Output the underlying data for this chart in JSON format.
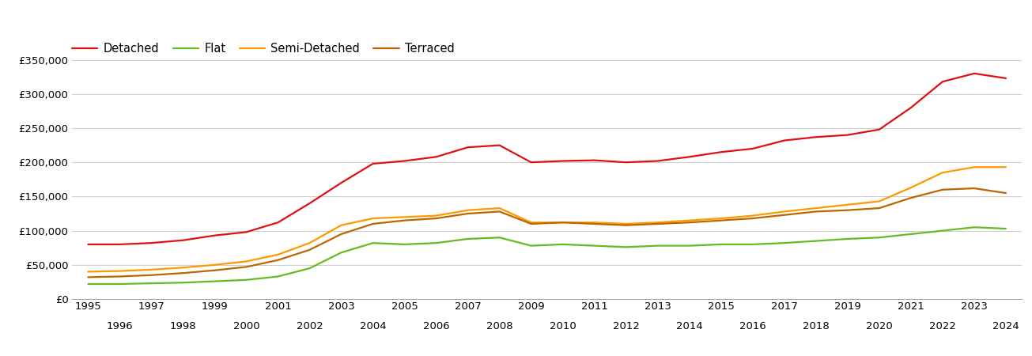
{
  "series": {
    "Detached": {
      "color": "#dd1111",
      "years": [
        1995,
        1996,
        1997,
        1998,
        1999,
        2000,
        2001,
        2002,
        2003,
        2004,
        2005,
        2006,
        2007,
        2008,
        2009,
        2010,
        2011,
        2012,
        2013,
        2014,
        2015,
        2016,
        2017,
        2018,
        2019,
        2020,
        2021,
        2022,
        2023,
        2024
      ],
      "values": [
        80000,
        80000,
        82000,
        86000,
        93000,
        98000,
        112000,
        140000,
        170000,
        198000,
        202000,
        208000,
        222000,
        225000,
        200000,
        202000,
        203000,
        200000,
        202000,
        208000,
        215000,
        220000,
        232000,
        237000,
        240000,
        248000,
        280000,
        318000,
        330000,
        323000
      ]
    },
    "Flat": {
      "color": "#66bb22",
      "years": [
        1995,
        1996,
        1997,
        1998,
        1999,
        2000,
        2001,
        2002,
        2003,
        2004,
        2005,
        2006,
        2007,
        2008,
        2009,
        2010,
        2011,
        2012,
        2013,
        2014,
        2015,
        2016,
        2017,
        2018,
        2019,
        2020,
        2021,
        2022,
        2023,
        2024
      ],
      "values": [
        22000,
        22000,
        23000,
        24000,
        26000,
        28000,
        33000,
        45000,
        68000,
        82000,
        80000,
        82000,
        88000,
        90000,
        78000,
        80000,
        78000,
        76000,
        78000,
        78000,
        80000,
        80000,
        82000,
        85000,
        88000,
        90000,
        95000,
        100000,
        105000,
        103000
      ]
    },
    "Semi-Detached": {
      "color": "#ff9900",
      "years": [
        1995,
        1996,
        1997,
        1998,
        1999,
        2000,
        2001,
        2002,
        2003,
        2004,
        2005,
        2006,
        2007,
        2008,
        2009,
        2010,
        2011,
        2012,
        2013,
        2014,
        2015,
        2016,
        2017,
        2018,
        2019,
        2020,
        2021,
        2022,
        2023,
        2024
      ],
      "values": [
        40000,
        41000,
        43000,
        46000,
        50000,
        55000,
        65000,
        82000,
        108000,
        118000,
        120000,
        122000,
        130000,
        133000,
        112000,
        112000,
        112000,
        110000,
        112000,
        115000,
        118000,
        122000,
        128000,
        133000,
        138000,
        143000,
        163000,
        185000,
        193000,
        193000
      ]
    },
    "Terraced": {
      "color": "#bb6600",
      "years": [
        1995,
        1996,
        1997,
        1998,
        1999,
        2000,
        2001,
        2002,
        2003,
        2004,
        2005,
        2006,
        2007,
        2008,
        2009,
        2010,
        2011,
        2012,
        2013,
        2014,
        2015,
        2016,
        2017,
        2018,
        2019,
        2020,
        2021,
        2022,
        2023,
        2024
      ],
      "values": [
        32000,
        33000,
        35000,
        38000,
        42000,
        47000,
        57000,
        72000,
        95000,
        110000,
        115000,
        118000,
        125000,
        128000,
        110000,
        112000,
        110000,
        108000,
        110000,
        112000,
        115000,
        118000,
        123000,
        128000,
        130000,
        133000,
        148000,
        160000,
        162000,
        155000
      ]
    }
  },
  "xlim_left": 1994.5,
  "xlim_right": 2024.5,
  "ylim": [
    0,
    375000
  ],
  "yticks": [
    0,
    50000,
    100000,
    150000,
    200000,
    250000,
    300000,
    350000
  ],
  "xticks_odd": [
    1995,
    1997,
    1999,
    2001,
    2003,
    2005,
    2007,
    2009,
    2011,
    2013,
    2015,
    2017,
    2019,
    2021,
    2023
  ],
  "xticks_even": [
    1996,
    1998,
    2000,
    2002,
    2004,
    2006,
    2008,
    2010,
    2012,
    2014,
    2016,
    2018,
    2020,
    2022,
    2024
  ],
  "background_color": "#ffffff",
  "grid_color": "#cccccc",
  "legend_fontsize": 10.5,
  "axis_fontsize": 9.5,
  "line_width": 1.6
}
